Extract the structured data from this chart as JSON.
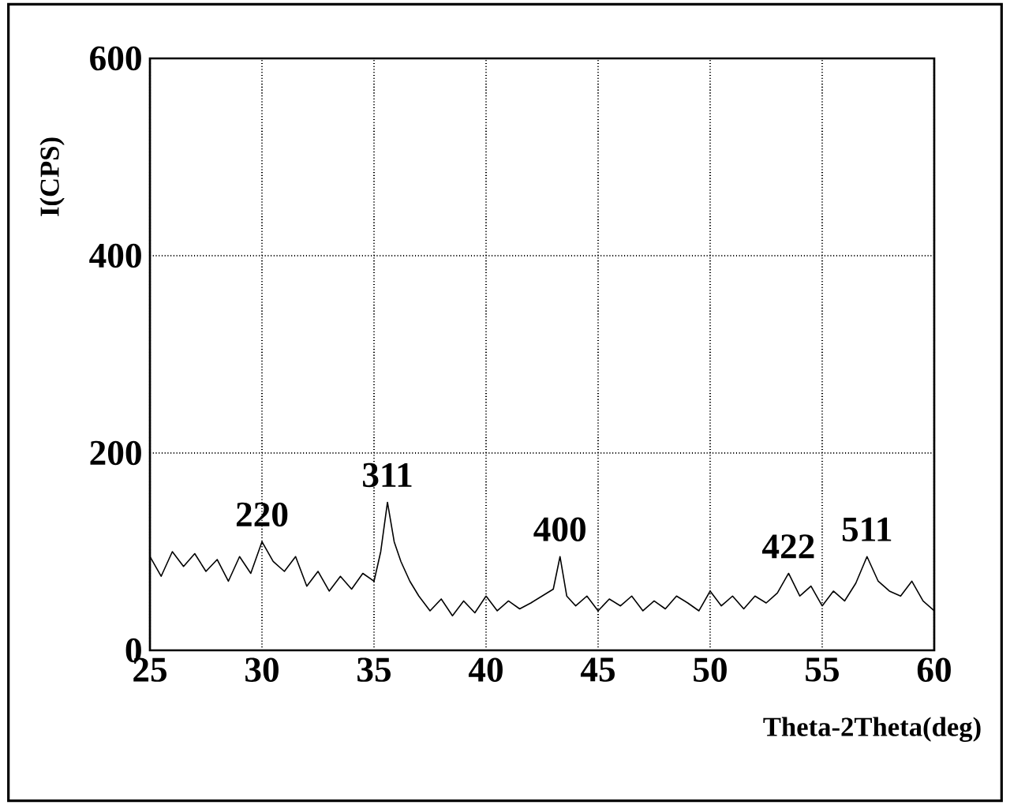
{
  "chart_data": {
    "type": "line",
    "xlabel": "Theta-2Theta(deg)",
    "ylabel": "I(CPS)",
    "xlim": [
      25,
      60
    ],
    "ylim": [
      0,
      600
    ],
    "xticks": [
      25,
      30,
      35,
      40,
      45,
      50,
      55,
      60
    ],
    "yticks": [
      0,
      200,
      400,
      600
    ],
    "grid": true,
    "marker": "none",
    "line_style": "solid",
    "series": [
      {
        "color": "#000000",
        "x": [
          25,
          25.5,
          26,
          26.5,
          27,
          27.5,
          28,
          28.5,
          29,
          29.5,
          30,
          30.5,
          31,
          31.5,
          32,
          32.5,
          33,
          33.5,
          34,
          34.5,
          35,
          35.3,
          35.6,
          35.9,
          36.2,
          36.6,
          37,
          37.5,
          38,
          38.5,
          39,
          39.5,
          40,
          40.5,
          41,
          41.5,
          42,
          42.5,
          43,
          43.3,
          43.6,
          44,
          44.5,
          45,
          45.5,
          46,
          46.5,
          47,
          47.5,
          48,
          48.5,
          49,
          49.5,
          50,
          50.5,
          51,
          51.5,
          52,
          52.5,
          53,
          53.5,
          54,
          54.5,
          55,
          55.5,
          56,
          56.5,
          57,
          57.5,
          58,
          58.5,
          59,
          59.5,
          60
        ],
        "values": [
          95,
          75,
          100,
          85,
          98,
          80,
          92,
          70,
          95,
          78,
          110,
          90,
          80,
          95,
          65,
          80,
          60,
          75,
          62,
          78,
          70,
          100,
          150,
          110,
          90,
          70,
          55,
          40,
          52,
          35,
          50,
          38,
          55,
          40,
          50,
          42,
          48,
          55,
          62,
          95,
          55,
          45,
          55,
          40,
          52,
          45,
          55,
          40,
          50,
          42,
          55,
          48,
          40,
          60,
          45,
          55,
          42,
          55,
          48,
          58,
          78,
          55,
          65,
          45,
          60,
          50,
          68,
          95,
          70,
          60,
          55,
          70,
          50,
          40
        ]
      }
    ],
    "annotations": [
      {
        "text": "220",
        "x": 30,
        "y": 110
      },
      {
        "text": "311",
        "x": 35.6,
        "y": 150
      },
      {
        "text": "400",
        "x": 43.3,
        "y": 95
      },
      {
        "text": "422",
        "x": 53.5,
        "y": 78
      },
      {
        "text": "511",
        "x": 57,
        "y": 95
      }
    ]
  }
}
